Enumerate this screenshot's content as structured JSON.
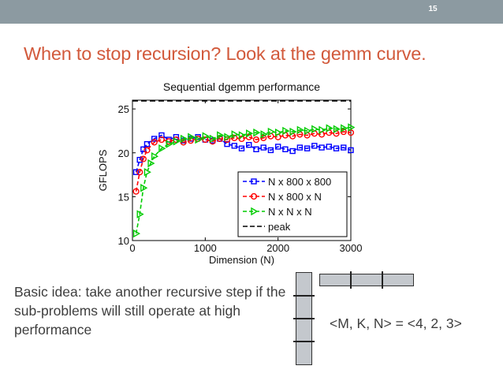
{
  "slide": {
    "number": "15",
    "title": "When to stop recursion? Look at the gemm curve.",
    "body_text": "Basic idea: take another recursive step if the sub-problems will still operate at high performance",
    "formula": "<M, K, N> = <4, 2, 3>"
  },
  "colors": {
    "topbar": "#8c9aa1",
    "title": "#d25a3c",
    "series1": "#0000ff",
    "series2": "#ff0000",
    "series3": "#00cc00",
    "peak": "#000000"
  },
  "chart_data": {
    "type": "line",
    "title": "Sequential dgemm performance",
    "xlabel": "Dimension (N)",
    "ylabel": "GFLOPS",
    "xlim": [
      0,
      3000
    ],
    "ylim": [
      10,
      26
    ],
    "xticks": [
      "0",
      "1000",
      "2000",
      "3000"
    ],
    "yticks": [
      "10",
      "15",
      "20",
      "25"
    ],
    "legend_position": "bottom-right",
    "grid": false,
    "series": [
      {
        "name": "N x 800 x 800",
        "marker": "square",
        "x": [
          50,
          100,
          150,
          200,
          300,
          400,
          500,
          600,
          700,
          800,
          900,
          1000,
          1100,
          1200,
          1300,
          1400,
          1500,
          1600,
          1700,
          1800,
          1900,
          2000,
          2100,
          2200,
          2300,
          2400,
          2500,
          2600,
          2700,
          2800,
          2900,
          3000
        ],
        "y": [
          17.8,
          19.2,
          20.4,
          21.0,
          21.6,
          22.0,
          21.5,
          21.8,
          21.4,
          21.6,
          21.8,
          21.5,
          21.4,
          21.6,
          21.0,
          20.8,
          20.5,
          20.9,
          20.4,
          20.6,
          20.3,
          20.7,
          20.4,
          20.2,
          20.6,
          20.5,
          20.8,
          20.6,
          20.7,
          20.5,
          20.6,
          20.3
        ]
      },
      {
        "name": "N x 800 x N",
        "marker": "circle",
        "x": [
          50,
          100,
          150,
          200,
          300,
          400,
          500,
          600,
          700,
          800,
          900,
          1000,
          1100,
          1200,
          1300,
          1400,
          1500,
          1600,
          1700,
          1800,
          1900,
          2000,
          2100,
          2200,
          2300,
          2400,
          2500,
          2600,
          2700,
          2800,
          2900,
          3000
        ],
        "y": [
          15.6,
          17.8,
          19.3,
          20.3,
          21.2,
          21.5,
          21.3,
          21.5,
          21.2,
          21.4,
          21.6,
          21.5,
          21.3,
          21.6,
          21.5,
          21.7,
          21.6,
          21.8,
          21.5,
          21.7,
          21.9,
          21.8,
          22.0,
          21.9,
          22.1,
          22.0,
          22.2,
          22.1,
          22.3,
          22.2,
          22.4,
          22.3
        ]
      },
      {
        "name": "N x N x N",
        "marker": "triangle-right",
        "x": [
          50,
          100,
          150,
          200,
          250,
          300,
          400,
          500,
          600,
          700,
          800,
          900,
          1000,
          1100,
          1200,
          1300,
          1400,
          1500,
          1600,
          1700,
          1800,
          1900,
          2000,
          2100,
          2200,
          2300,
          2400,
          2500,
          2600,
          2700,
          2800,
          2900,
          3000
        ],
        "y": [
          10.8,
          13.0,
          16.0,
          17.8,
          18.8,
          19.6,
          20.5,
          21.0,
          21.3,
          21.6,
          21.8,
          21.5,
          21.9,
          21.6,
          22.0,
          21.8,
          22.1,
          22.0,
          22.2,
          22.3,
          22.1,
          22.4,
          22.3,
          22.5,
          22.4,
          22.6,
          22.5,
          22.7,
          22.6,
          22.8,
          22.7,
          22.8,
          22.9
        ]
      },
      {
        "name": "peak",
        "marker": "none",
        "dashed": true,
        "x": [
          0,
          3000
        ],
        "y": [
          25.9,
          25.9
        ]
      }
    ]
  }
}
